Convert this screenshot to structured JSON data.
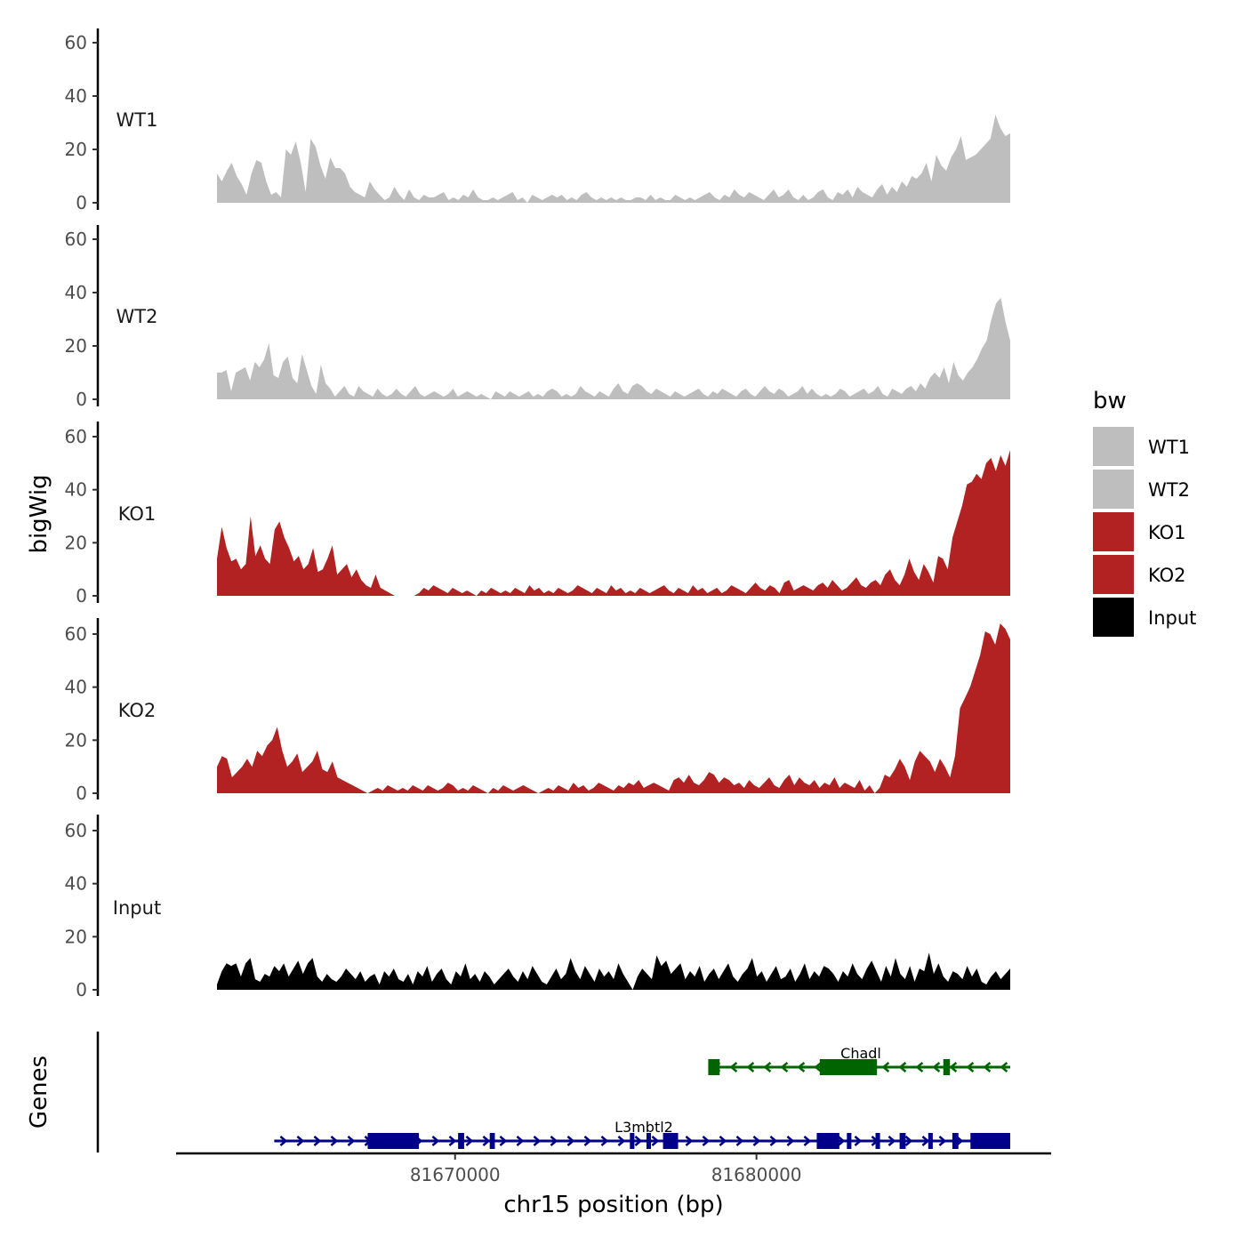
{
  "chart_data": {
    "type": "area",
    "chromosome": "chr15",
    "xlabel": "chr15 position (bp)",
    "ylabel_signal": "bigWig",
    "ylabel_genes": "Genes",
    "xlim": [
      81662100,
      81688420
    ],
    "x_ticks": [
      81670000,
      81680000
    ],
    "x_tick_labels": [
      "81670000",
      "81680000"
    ],
    "ylim": [
      0,
      64
    ],
    "y_ticks": [
      0,
      20,
      40,
      60
    ],
    "y_tick_labels": [
      "0",
      "20",
      "40",
      "60"
    ],
    "legend": {
      "title": "bw",
      "entries": [
        {
          "label": "WT1",
          "color": "#bebebe"
        },
        {
          "label": "WT2",
          "color": "#bebebe"
        },
        {
          "label": "KO1",
          "color": "#b22222"
        },
        {
          "label": "KO2",
          "color": "#b22222"
        },
        {
          "label": "Input",
          "color": "#000000"
        }
      ]
    },
    "tracks": [
      {
        "name": "WT1",
        "color": "#bebebe",
        "x_start": 81662100,
        "x_end": 81688420,
        "values": [
          11,
          8,
          12,
          15,
          10,
          7,
          3,
          11,
          16,
          15,
          8,
          3,
          4,
          2,
          20,
          18,
          23,
          15,
          4,
          24,
          21,
          14,
          9,
          17,
          13,
          13,
          11,
          6,
          4,
          3,
          2,
          8,
          5,
          3,
          1,
          2,
          6,
          3,
          1,
          5,
          2,
          1,
          3,
          2,
          2,
          3,
          4,
          1,
          2,
          1,
          3,
          2,
          5,
          2,
          1,
          1,
          2,
          1,
          2,
          3,
          4,
          1,
          2,
          0,
          3,
          2,
          1,
          2,
          3,
          2,
          3,
          1,
          2,
          1,
          3,
          4,
          2,
          1,
          2,
          1,
          2,
          1,
          2,
          1,
          1,
          2,
          2,
          1,
          3,
          1,
          2,
          1,
          1,
          3,
          2,
          1,
          2,
          1,
          2,
          3,
          4,
          2,
          1,
          3,
          2,
          5,
          3,
          2,
          4,
          3,
          2,
          1,
          3,
          5,
          2,
          3,
          5,
          2,
          1,
          3,
          1,
          2,
          4,
          5,
          2,
          1,
          4,
          3,
          5,
          2,
          6,
          4,
          3,
          2,
          5,
          7,
          3,
          6,
          4,
          8,
          6,
          10,
          9,
          11,
          15,
          8,
          18,
          14,
          12,
          17,
          20,
          25,
          16,
          17,
          18,
          20,
          22,
          24,
          33,
          28,
          25,
          26
        ],
        "x_at_idx": [
          81662100,
          81662262,
          81662424,
          81662587,
          81662749,
          81662912,
          81663074,
          81663236,
          81663399,
          81663561,
          81663724,
          81663886,
          81664049,
          81664211,
          81664373,
          81664536,
          81664698,
          81664861,
          81665023,
          81665185,
          81665348,
          81665510,
          81665673,
          81665835,
          81665998,
          81666160,
          81666322,
          81666485,
          81666647,
          81666810,
          81666972,
          81667134,
          81667297,
          81667459,
          81667622,
          81667784,
          81667947,
          81668109,
          81668271,
          81668434,
          81668596,
          81668759,
          81668921,
          81669083,
          81669246,
          81669408,
          81669571,
          81669733,
          81669896,
          81670058,
          81670220,
          81670383,
          81670545,
          81670708,
          81670870,
          81671032,
          81671195,
          81671357,
          81671520,
          81671682,
          81671845,
          81672007,
          81672169,
          81672332,
          81672494,
          81672657,
          81672819,
          81672981,
          81673144,
          81673306,
          81673469,
          81673631,
          81673794,
          81673956,
          81674118,
          81674281,
          81674443,
          81674606,
          81674768,
          81674930,
          81675093,
          81675255,
          81675418,
          81675580,
          81675743,
          81675905,
          81676067,
          81676230,
          81676392,
          81676555,
          81676717,
          81676879,
          81677042,
          81677204,
          81677367,
          81677529,
          81677692,
          81677854,
          81678016,
          81678179,
          81678341,
          81678504,
          81678666,
          81678828,
          81678991,
          81679153,
          81679316,
          81679478,
          81679641,
          81679803,
          81679965,
          81680128,
          81680290,
          81680453,
          81680615,
          81680777,
          81680940,
          81681102,
          81681265,
          81681427,
          81681590,
          81681752,
          81681914,
          81682077,
          81682239,
          81682402,
          81682564,
          81682726,
          81682889,
          81683051,
          81683214,
          81683376,
          81683539,
          81683701,
          81683863,
          81684026,
          81684188,
          81684351,
          81684513,
          81684675,
          81684838,
          81685000,
          81685163,
          81685325,
          81685488,
          81685650,
          81685812,
          81685975,
          81686137,
          81686300,
          81686462,
          81686624,
          81686787,
          81686949,
          81687112,
          81687274,
          81687437,
          81687599,
          81687761,
          81687924,
          81688086,
          81688249,
          81688420
        ]
      },
      {
        "name": "WT2",
        "color": "#bebebe",
        "values": [
          10,
          10,
          11,
          3,
          10,
          11,
          12,
          7,
          14,
          12,
          15,
          21,
          9,
          8,
          14,
          16,
          8,
          6,
          17,
          11,
          5,
          2,
          13,
          6,
          4,
          1,
          3,
          5,
          2,
          1,
          5,
          3,
          2,
          1,
          4,
          2,
          1,
          2,
          4,
          2,
          1,
          3,
          5,
          2,
          1,
          2,
          3,
          2,
          1,
          2,
          4,
          1,
          2,
          3,
          2,
          1,
          2,
          1,
          0,
          3,
          2,
          1,
          3,
          2,
          1,
          2,
          3,
          1,
          2,
          1,
          3,
          4,
          3,
          1,
          2,
          1,
          2,
          5,
          3,
          2,
          1,
          3,
          2,
          1,
          4,
          6,
          3,
          2,
          5,
          6,
          5,
          3,
          2,
          4,
          3,
          2,
          1,
          3,
          2,
          1,
          2,
          3,
          4,
          2,
          1,
          3,
          2,
          4,
          3,
          2,
          1,
          3,
          4,
          2,
          1,
          3,
          5,
          3,
          2,
          4,
          3,
          1,
          2,
          3,
          5,
          2,
          4,
          2,
          1,
          2,
          1,
          2,
          4,
          3,
          1,
          2,
          3,
          4,
          2,
          3,
          5,
          2,
          1,
          4,
          3,
          2,
          4,
          5,
          3,
          6,
          4,
          8,
          10,
          8,
          12,
          6,
          14,
          9,
          7,
          10,
          12,
          15,
          19,
          22,
          30,
          36,
          38,
          29,
          22
        ],
        "x_at_idx": []
      },
      {
        "name": "KO1",
        "color": "#b22222",
        "values": [
          14,
          26,
          18,
          13,
          14,
          10,
          12,
          30,
          15,
          19,
          14,
          12,
          25,
          28,
          22,
          18,
          13,
          15,
          10,
          12,
          18,
          9,
          10,
          14,
          19,
          8,
          10,
          12,
          7,
          10,
          6,
          4,
          3,
          8,
          3,
          2,
          1,
          0,
          0,
          0,
          0,
          0,
          1,
          3,
          2,
          4,
          3,
          2,
          1,
          3,
          2,
          1,
          2,
          1,
          0,
          2,
          1,
          3,
          2,
          1,
          2,
          1,
          3,
          2,
          1,
          4,
          2,
          3,
          1,
          2,
          1,
          3,
          2,
          1,
          2,
          4,
          3,
          2,
          1,
          3,
          2,
          1,
          4,
          2,
          3,
          1,
          2,
          1,
          3,
          2,
          1,
          2,
          3,
          4,
          2,
          1,
          3,
          2,
          1,
          4,
          2,
          3,
          1,
          2,
          3,
          1,
          2,
          4,
          3,
          2,
          1,
          3,
          5,
          3,
          2,
          4,
          3,
          1,
          5,
          6,
          2,
          3,
          4,
          3,
          2,
          4,
          5,
          3,
          6,
          4,
          2,
          3,
          5,
          7,
          4,
          3,
          5,
          6,
          4,
          8,
          10,
          6,
          4,
          8,
          14,
          9,
          6,
          12,
          9,
          5,
          15,
          14,
          10,
          22,
          28,
          34,
          42,
          43,
          46,
          44,
          50,
          52,
          47,
          53,
          49,
          55
        ],
        "x_at_idx": []
      },
      {
        "name": "KO2",
        "color": "#b22222",
        "values": [
          10,
          14,
          13,
          6,
          8,
          10,
          13,
          10,
          16,
          14,
          18,
          20,
          25,
          16,
          10,
          12,
          15,
          8,
          10,
          12,
          16,
          9,
          8,
          12,
          6,
          5,
          4,
          3,
          2,
          1,
          0,
          1,
          2,
          1,
          3,
          2,
          1,
          2,
          1,
          3,
          2,
          1,
          3,
          2,
          1,
          2,
          4,
          3,
          1,
          2,
          1,
          3,
          2,
          1,
          0,
          2,
          1,
          3,
          2,
          1,
          2,
          3,
          2,
          1,
          0,
          1,
          2,
          1,
          3,
          2,
          1,
          4,
          2,
          3,
          1,
          2,
          4,
          3,
          2,
          1,
          3,
          2,
          4,
          3,
          5,
          2,
          3,
          4,
          3,
          2,
          1,
          5,
          6,
          4,
          7,
          4,
          3,
          5,
          8,
          7,
          4,
          6,
          5,
          3,
          4,
          2,
          5,
          3,
          2,
          4,
          6,
          3,
          2,
          5,
          7,
          3,
          6,
          4,
          3,
          5,
          2,
          4,
          3,
          6,
          2,
          4,
          3,
          2,
          5,
          1,
          3,
          0,
          2,
          7,
          6,
          9,
          13,
          10,
          5,
          12,
          16,
          14,
          12,
          8,
          13,
          10,
          6,
          14,
          32,
          36,
          40,
          46,
          52,
          61,
          60,
          56,
          64,
          62,
          58
        ],
        "x_at_idx": []
      },
      {
        "name": "Input",
        "color": "#000000",
        "values": [
          2,
          7,
          10,
          9,
          10,
          5,
          10,
          12,
          4,
          3,
          6,
          5,
          9,
          7,
          10,
          5,
          8,
          11,
          6,
          10,
          12,
          5,
          3,
          6,
          4,
          3,
          5,
          8,
          6,
          4,
          7,
          3,
          5,
          6,
          2,
          7,
          5,
          8,
          4,
          3,
          6,
          2,
          7,
          5,
          9,
          3,
          6,
          8,
          4,
          2,
          7,
          5,
          10,
          4,
          6,
          3,
          7,
          5,
          2,
          4,
          6,
          8,
          5,
          3,
          7,
          4,
          9,
          6,
          3,
          2,
          5,
          8,
          4,
          6,
          12,
          7,
          4,
          9,
          6,
          3,
          8,
          5,
          7,
          4,
          10,
          6,
          3,
          0,
          5,
          8,
          6,
          4,
          13,
          9,
          11,
          6,
          8,
          10,
          4,
          7,
          5,
          9,
          3,
          6,
          8,
          4,
          7,
          10,
          5,
          3,
          6,
          8,
          12,
          5,
          7,
          3,
          6,
          9,
          4,
          5,
          8,
          3,
          6,
          10,
          4,
          7,
          5,
          9,
          8,
          6,
          3,
          7,
          5,
          10,
          6,
          4,
          8,
          11,
          7,
          3,
          9,
          5,
          12,
          6,
          4,
          9,
          3,
          8,
          7,
          14,
          6,
          10,
          5,
          3,
          7,
          6,
          4,
          9,
          5,
          8,
          3,
          2,
          5,
          7,
          4,
          6,
          8
        ],
        "x_at_idx": []
      }
    ],
    "genes": [
      {
        "name": "Chadl",
        "strand": "-",
        "color": "#006400",
        "start": 81678400,
        "end": 81688420,
        "exons": [
          [
            81678400,
            81678780
          ],
          [
            81682100,
            81684000
          ],
          [
            81686200,
            81686420
          ]
        ]
      },
      {
        "name": "L3mbtl2",
        "strand": "+",
        "color": "#00008b",
        "start": 81664000,
        "end": 81688420,
        "exons": [
          [
            81667100,
            81668800
          ],
          [
            81670100,
            81670300
          ],
          [
            81671150,
            81671320
          ],
          [
            81675800,
            81675950
          ],
          [
            81676350,
            81676500
          ],
          [
            81676900,
            81677400
          ],
          [
            81682000,
            81682750
          ],
          [
            81683000,
            81683150
          ],
          [
            81683950,
            81684100
          ],
          [
            81684750,
            81684950
          ],
          [
            81685700,
            81685850
          ],
          [
            81686500,
            81686700
          ],
          [
            81687100,
            81688420
          ]
        ]
      }
    ]
  }
}
